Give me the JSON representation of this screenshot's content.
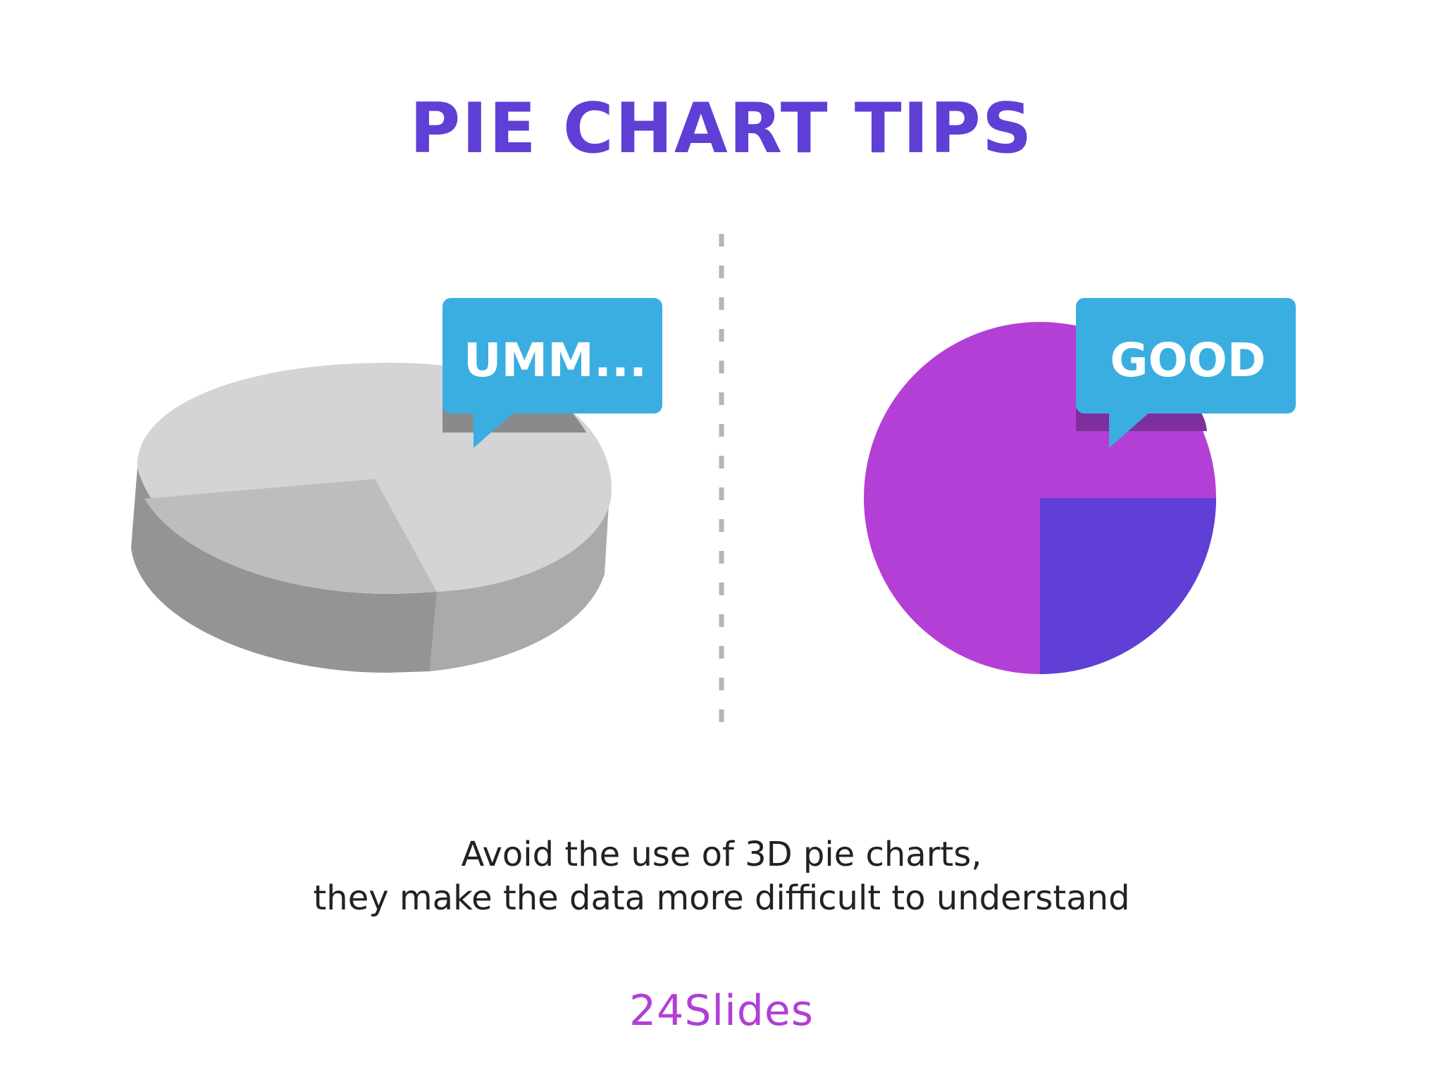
{
  "title": "PIE CHART TIPS",
  "colors": {
    "title": "#5f3fd6",
    "bubble": "#3aaee0",
    "good_major": "#b43fd6",
    "good_minor": "#5f3fd6",
    "bad_top_light": "#d4d4d6",
    "bad_top_dark": "#bdbdbf",
    "bad_side_light": "#aaaaac",
    "bad_side_dark": "#949496",
    "divider": "#b5b5b5"
  },
  "chart_data": [
    {
      "type": "pie",
      "style": "3d",
      "values": [
        70,
        30
      ],
      "callout": "UMM..."
    },
    {
      "type": "pie",
      "style": "flat",
      "values": [
        75,
        25
      ],
      "callout": "GOOD"
    }
  ],
  "caption": {
    "line1": "Avoid the use of 3D pie charts,",
    "line2": "they make the data more difficult to understand"
  },
  "brand": "24Slides"
}
